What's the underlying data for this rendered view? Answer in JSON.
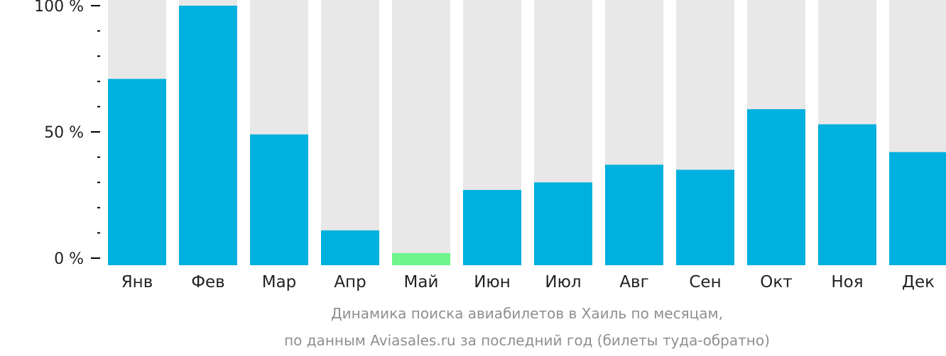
{
  "chart_data": {
    "type": "bar",
    "categories": [
      "Янв",
      "Фев",
      "Мар",
      "Апр",
      "Май",
      "Июн",
      "Июл",
      "Авг",
      "Сен",
      "Окт",
      "Ноя",
      "Дек"
    ],
    "values": [
      71,
      100,
      49,
      11,
      2,
      27,
      30,
      37,
      35,
      59,
      53,
      42
    ],
    "ylim": [
      0,
      100
    ],
    "y_ticks": [
      {
        "value": 0,
        "label": "0 %"
      },
      {
        "value": 50,
        "label": "50 %"
      },
      {
        "value": 100,
        "label": "100 %"
      }
    ],
    "highlight_index": 4,
    "colors": {
      "bar": "#00b0de",
      "highlight": "#6ef58c",
      "background_bar": "#e8e8e8",
      "axis": "#000000",
      "text": "#222222"
    }
  },
  "caption": {
    "line1": "Динамика поиска авиабилетов в Хаиль по месяцам,",
    "line2": "по данным Aviasales.ru за последний год (билеты туда-обратно)"
  }
}
